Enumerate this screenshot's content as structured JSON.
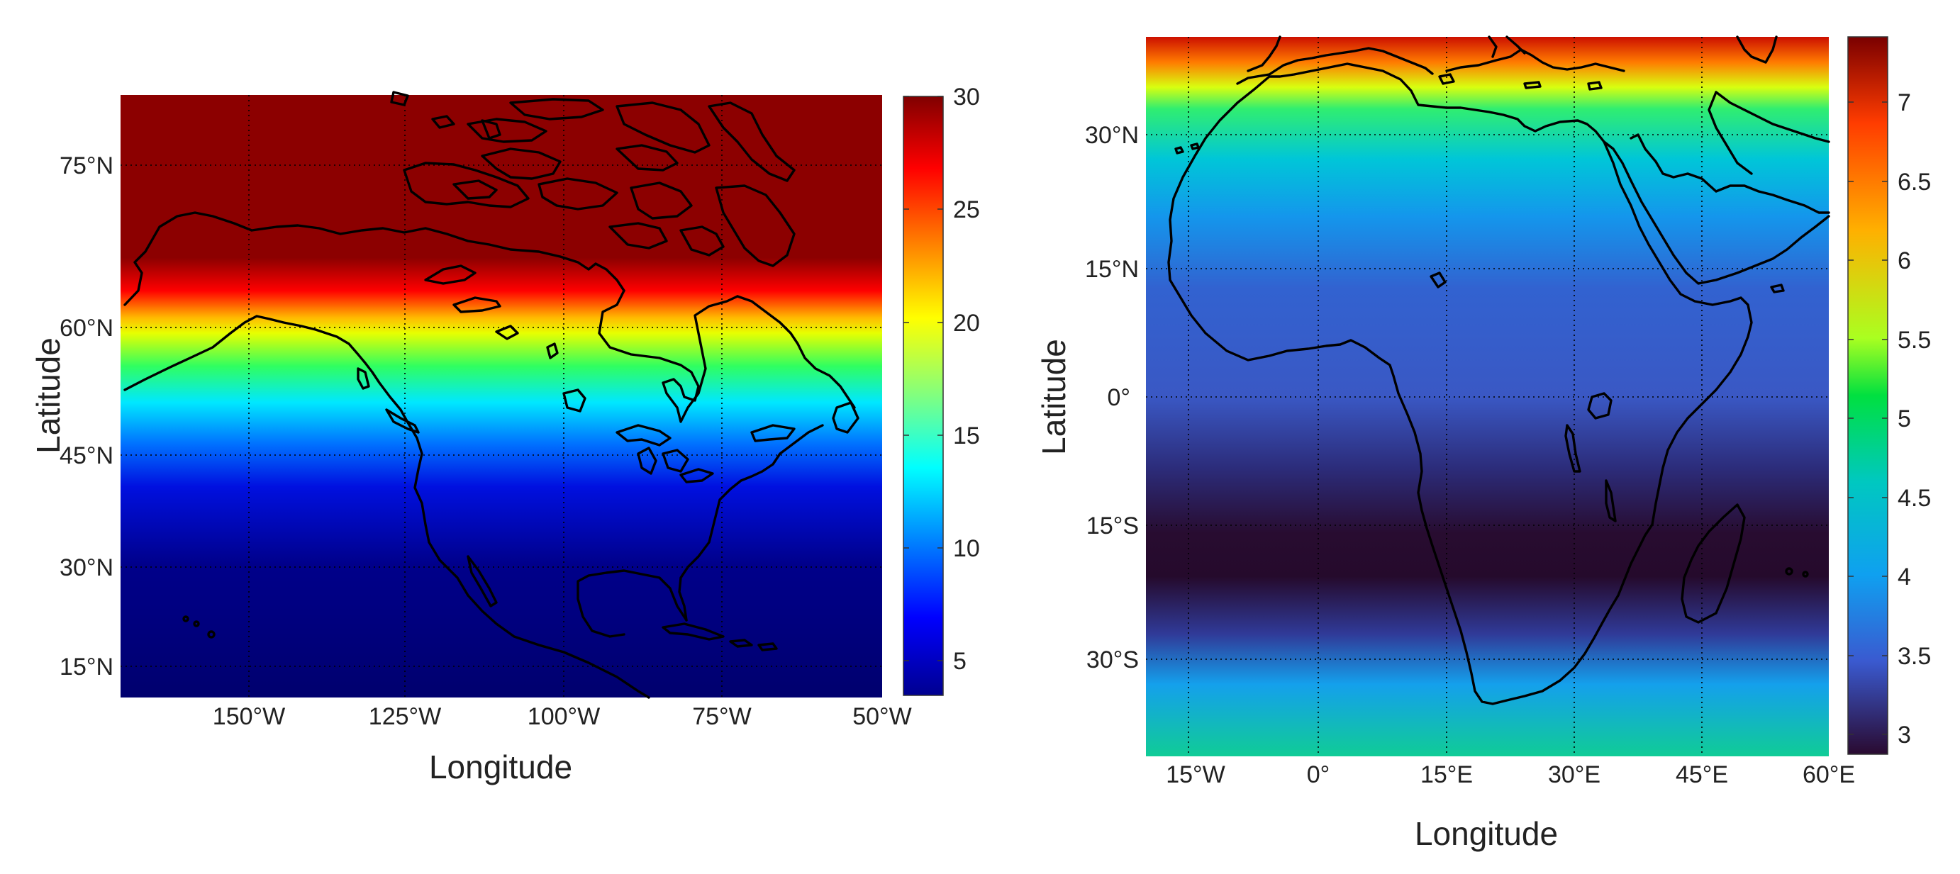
{
  "figure": {
    "panels": [
      {
        "id": "north-america",
        "xlabel": "Longitude",
        "ylabel": "Latitude",
        "xticks": [
          "150°W",
          "125°W",
          "100°W",
          "75°W",
          "50°W"
        ],
        "yticks": [
          "75°N",
          "60°N",
          "45°N",
          "30°N",
          "15°N"
        ],
        "colorbar_ticks": [
          "30",
          "25",
          "20",
          "15",
          "10",
          "5"
        ]
      },
      {
        "id": "africa",
        "xlabel": "Longitude",
        "ylabel": "Latitude",
        "xticks": [
          "15°W",
          "0°",
          "15°E",
          "30°E",
          "45°E",
          "60°E"
        ],
        "yticks": [
          "30°N",
          "15°N",
          "0°",
          "15°S",
          "30°S"
        ],
        "colorbar_ticks": [
          "7",
          "6.5",
          "6",
          "5.5",
          "5",
          "4.5",
          "4",
          "3.5",
          "3"
        ]
      }
    ]
  },
  "chart_data": [
    {
      "type": "heatmap",
      "title": "",
      "xlabel": "Longitude",
      "ylabel": "Latitude",
      "x_range_deg": [
        -170,
        -50
      ],
      "y_range_deg": [
        10,
        83
      ],
      "xticks_deg": [
        -150,
        -125,
        -100,
        -75,
        -50
      ],
      "yticks_deg": [
        75,
        60,
        45,
        30,
        15
      ],
      "colorbar": {
        "range": [
          3,
          30
        ],
        "ticks": [
          30,
          25,
          20,
          15,
          10,
          5
        ],
        "colormap": "jet"
      },
      "grid": true,
      "coastlines": true,
      "gradient_by_latitude": [
        {
          "lat": 10,
          "value": 3
        },
        {
          "lat": 25,
          "value": 3.5
        },
        {
          "lat": 35,
          "value": 5
        },
        {
          "lat": 43,
          "value": 9
        },
        {
          "lat": 48,
          "value": 13
        },
        {
          "lat": 52,
          "value": 16
        },
        {
          "lat": 55,
          "value": 18
        },
        {
          "lat": 58,
          "value": 21
        },
        {
          "lat": 60.5,
          "value": 26
        },
        {
          "lat": 63,
          "value": 29
        },
        {
          "lat": 65,
          "value": 30
        },
        {
          "lat": 83,
          "value": 30
        }
      ]
    },
    {
      "type": "heatmap",
      "title": "",
      "xlabel": "Longitude",
      "ylabel": "Latitude",
      "x_range_deg": [
        -19,
        60
      ],
      "y_range_deg": [
        -42,
        41
      ],
      "xticks_deg": [
        -15,
        0,
        15,
        30,
        45,
        60
      ],
      "yticks_deg": [
        30,
        15,
        0,
        -15,
        -30
      ],
      "colorbar": {
        "range": [
          2.9,
          7.3
        ],
        "ticks": [
          7,
          6.5,
          6,
          5.5,
          5,
          4.5,
          4,
          3.5,
          3
        ],
        "colormap": "jet (dark blue floor)"
      },
      "grid": true,
      "coastlines": true,
      "gradient_by_latitude": [
        {
          "lat": 41,
          "value": 7.3
        },
        {
          "lat": 38,
          "value": 6.8
        },
        {
          "lat": 35,
          "value": 5.8
        },
        {
          "lat": 32,
          "value": 5.0
        },
        {
          "lat": 27,
          "value": 4.2
        },
        {
          "lat": 20,
          "value": 3.8
        },
        {
          "lat": 10,
          "value": 3.5
        },
        {
          "lat": 0,
          "value": 3.5
        },
        {
          "lat": -8,
          "value": 3.2
        },
        {
          "lat": -15,
          "value": 2.95
        },
        {
          "lat": -20,
          "value": 2.9
        },
        {
          "lat": -26,
          "value": 3.15
        },
        {
          "lat": -32,
          "value": 3.6
        },
        {
          "lat": -38,
          "value": 4.3
        },
        {
          "lat": -42,
          "value": 4.8
        }
      ]
    }
  ]
}
